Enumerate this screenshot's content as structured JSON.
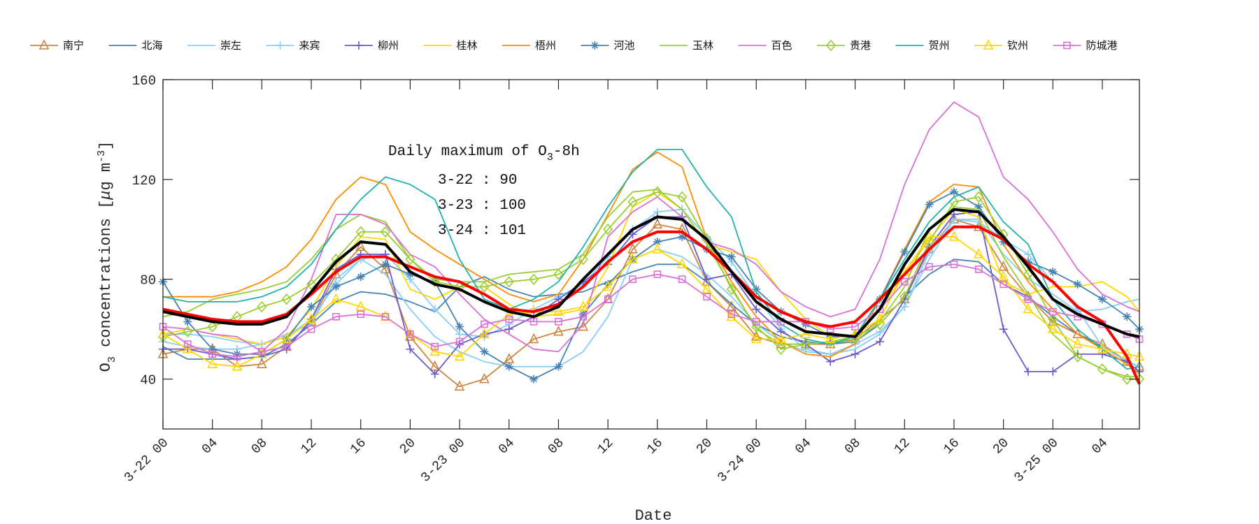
{
  "chart_data": {
    "type": "line",
    "xlabel": "Date",
    "ylabel": {
      "pre": "O",
      "sub": "3",
      "mid": " concentrations [",
      "mu": "μ",
      "unit": "g m",
      "sup": "-3",
      "post": "]"
    },
    "xlim": [
      0,
      79
    ],
    "ylim": [
      20,
      160
    ],
    "x_unit": "hours from 3-22 00",
    "x": [
      0,
      2,
      4,
      6,
      8,
      10,
      12,
      14,
      16,
      18,
      20,
      22,
      24,
      26,
      28,
      30,
      32,
      34,
      36,
      38,
      40,
      42,
      44,
      46,
      48,
      50,
      52,
      54,
      56,
      58,
      60,
      62,
      64,
      66,
      68,
      70,
      72,
      74,
      76,
      78,
      79
    ],
    "xticks": [
      {
        "value": 0,
        "label": "3-22 00"
      },
      {
        "value": 4,
        "label": "04"
      },
      {
        "value": 8,
        "label": "08"
      },
      {
        "value": 12,
        "label": "12"
      },
      {
        "value": 16,
        "label": "16"
      },
      {
        "value": 20,
        "label": "20"
      },
      {
        "value": 24,
        "label": "3-23 00"
      },
      {
        "value": 28,
        "label": "04"
      },
      {
        "value": 32,
        "label": "08"
      },
      {
        "value": 36,
        "label": "12"
      },
      {
        "value": 40,
        "label": "16"
      },
      {
        "value": 44,
        "label": "20"
      },
      {
        "value": 48,
        "label": "3-24 00"
      },
      {
        "value": 52,
        "label": "04"
      },
      {
        "value": 56,
        "label": "08"
      },
      {
        "value": 60,
        "label": "12"
      },
      {
        "value": 64,
        "label": "16"
      },
      {
        "value": 68,
        "label": "20"
      },
      {
        "value": 72,
        "label": "3-25 00"
      },
      {
        "value": 76,
        "label": "04"
      }
    ],
    "yticks": [
      {
        "value": 40,
        "label": "40"
      },
      {
        "value": 80,
        "label": "80"
      },
      {
        "value": 120,
        "label": "120"
      },
      {
        "value": 160,
        "label": "160"
      }
    ],
    "grid": false,
    "legend_position": "top",
    "annotation": {
      "title_pre": "Daily maximum of O",
      "title_sub": "3",
      "title_post": "-8h",
      "lines": [
        "3-22 : 90",
        "3-23 : 100",
        "3-24 : 101"
      ]
    },
    "series": [
      {
        "name": "南宁",
        "color": "#CD853F",
        "marker": "triangle",
        "values": [
          50,
          52,
          52,
          45,
          46,
          53,
          63,
          82,
          93,
          84,
          57,
          45,
          37,
          40,
          48,
          56,
          59,
          61,
          72,
          92,
          102,
          100,
          79,
          69,
          57,
          54,
          54,
          54,
          56,
          64,
          72,
          92,
          104,
          101,
          85,
          73,
          63,
          58,
          54,
          47,
          45
        ]
      },
      {
        "name": "北海",
        "color": "#4682B4",
        "marker": "none",
        "values": [
          53,
          48,
          48,
          48,
          49,
          54,
          62,
          71,
          75,
          74,
          71,
          67,
          77,
          81,
          76,
          73,
          74,
          75,
          79,
          83,
          86,
          86,
          79,
          70,
          62,
          57,
          55,
          54,
          55,
          62,
          73,
          82,
          88,
          87,
          78,
          73,
          65,
          58,
          53,
          47,
          45
        ]
      },
      {
        "name": "崇左",
        "color": "#87CEFA",
        "marker": "none",
        "values": [
          58,
          58,
          57,
          55,
          54,
          58,
          62,
          80,
          88,
          82,
          68,
          57,
          51,
          47,
          45,
          45,
          45,
          51,
          65,
          88,
          92,
          89,
          82,
          73,
          62,
          55,
          51,
          50,
          52,
          58,
          69,
          88,
          104,
          104,
          90,
          80,
          74,
          67,
          68,
          71,
          72
        ]
      },
      {
        "name": "来宾",
        "color": "#87CEFA",
        "marker": "plus",
        "values": [
          55,
          53,
          52,
          52,
          54,
          57,
          64,
          78,
          88,
          90,
          80,
          68,
          58,
          57,
          62,
          68,
          73,
          78,
          89,
          100,
          107,
          108,
          97,
          87,
          73,
          60,
          52,
          50,
          54,
          59,
          69,
          91,
          104,
          103,
          96,
          90,
          79,
          68,
          53,
          47,
          45
        ]
      },
      {
        "name": "柳州",
        "color": "#6A5ACD",
        "marker": "plus",
        "values": [
          52,
          52,
          50,
          48,
          49,
          52,
          64,
          84,
          90,
          90,
          52,
          42,
          54,
          58,
          60,
          65,
          72,
          79,
          86,
          98,
          105,
          105,
          80,
          82,
          68,
          59,
          54,
          47,
          50,
          55,
          72,
          93,
          106,
          107,
          60,
          43,
          43,
          50,
          50,
          47,
          43
        ]
      },
      {
        "name": "桂林",
        "color": "#FFD700",
        "marker": "none",
        "values": [
          58,
          60,
          58,
          56,
          54,
          57,
          68,
          85,
          97,
          96,
          76,
          72,
          77,
          77,
          70,
          65,
          66,
          68,
          85,
          109,
          115,
          108,
          94,
          91,
          88,
          75,
          64,
          57,
          57,
          68,
          82,
          96,
          108,
          105,
          79,
          74,
          77,
          77,
          79,
          73,
          67
        ]
      },
      {
        "name": "梧州",
        "color": "#FF8C00",
        "marker": "none",
        "values": [
          73,
          73,
          73,
          75,
          79,
          85,
          96,
          112,
          121,
          118,
          99,
          92,
          86,
          80,
          74,
          71,
          74,
          88,
          106,
          124,
          131,
          125,
          96,
          79,
          65,
          55,
          50,
          49,
          54,
          72,
          92,
          111,
          118,
          117,
          94,
          79,
          68,
          58,
          52,
          46,
          42
        ]
      },
      {
        "name": "河池",
        "color": "#4682B4",
        "marker": "star",
        "values": [
          79,
          63,
          52,
          50,
          50,
          56,
          69,
          77,
          81,
          86,
          82,
          79,
          61,
          51,
          45,
          40,
          45,
          66,
          78,
          88,
          95,
          97,
          92,
          89,
          76,
          67,
          62,
          57,
          57,
          72,
          91,
          110,
          115,
          109,
          95,
          87,
          83,
          78,
          72,
          65,
          60
        ]
      },
      {
        "name": "玉林",
        "color": "#9ACD32",
        "marker": "none",
        "values": [
          65,
          67,
          72,
          74,
          76,
          79,
          88,
          100,
          106,
          103,
          88,
          80,
          79,
          79,
          82,
          83,
          84,
          90,
          105,
          115,
          116,
          108,
          94,
          77,
          60,
          54,
          54,
          55,
          55,
          63,
          77,
          100,
          109,
          108,
          89,
          74,
          58,
          49,
          44,
          41,
          41
        ]
      },
      {
        "name": "百色",
        "color": "#DA70D6",
        "marker": "none",
        "values": [
          61,
          60,
          58,
          57,
          51,
          60,
          80,
          106,
          106,
          102,
          90,
          85,
          74,
          64,
          58,
          52,
          51,
          62,
          97,
          107,
          113,
          105,
          95,
          92,
          86,
          75,
          69,
          65,
          68,
          88,
          118,
          140,
          151,
          145,
          121,
          112,
          99,
          84,
          74,
          69,
          67
        ]
      },
      {
        "name": "贵港",
        "color": "#9ACD32",
        "marker": "diamond",
        "values": [
          57,
          59,
          61,
          65,
          69,
          72,
          78,
          88,
          99,
          99,
          88,
          79,
          77,
          77,
          79,
          80,
          82,
          88,
          100,
          111,
          115,
          113,
          96,
          76,
          61,
          52,
          54,
          55,
          57,
          62,
          73,
          95,
          111,
          113,
          98,
          82,
          64,
          49,
          44,
          40,
          40
        ]
      },
      {
        "name": "贺州",
        "color": "#20B2AA",
        "marker": "none",
        "values": [
          73,
          71,
          71,
          71,
          73,
          77,
          86,
          100,
          112,
          121,
          118,
          112,
          88,
          72,
          68,
          72,
          79,
          93,
          109,
          123,
          132,
          132,
          117,
          105,
          75,
          62,
          56,
          54,
          57,
          72,
          88,
          103,
          113,
          117,
          103,
          94,
          72,
          60,
          52,
          44,
          45
        ]
      },
      {
        "name": "钦州",
        "color": "#FFD700",
        "marker": "triangle",
        "values": [
          58,
          52,
          46,
          45,
          50,
          56,
          64,
          72,
          69,
          65,
          58,
          51,
          49,
          58,
          66,
          67,
          67,
          69,
          77,
          88,
          92,
          86,
          76,
          65,
          56,
          56,
          58,
          56,
          58,
          64,
          83,
          97,
          97,
          90,
          81,
          68,
          60,
          54,
          52,
          50,
          49
        ]
      },
      {
        "name": "防城港",
        "color": "#DA70D6",
        "marker": "square",
        "values": [
          61,
          54,
          50,
          49,
          51,
          53,
          60,
          65,
          66,
          65,
          58,
          53,
          55,
          62,
          64,
          63,
          63,
          65,
          72,
          80,
          82,
          80,
          73,
          66,
          63,
          63,
          63,
          60,
          61,
          68,
          79,
          85,
          86,
          84,
          78,
          72,
          67,
          65,
          62,
          58,
          56
        ]
      },
      {
        "color": "#FF0000",
        "marker": "none",
        "thick": true,
        "values": [
          68,
          66,
          64,
          63,
          63,
          66,
          74,
          83,
          89,
          89,
          85,
          81,
          79,
          74,
          68,
          67,
          70,
          77,
          87,
          95,
          99,
          99,
          92,
          83,
          73,
          67,
          63,
          61,
          63,
          72,
          82,
          92,
          101,
          101,
          96,
          86,
          79,
          69,
          63,
          49,
          38
        ]
      },
      {
        "color": "#000000",
        "marker": "none",
        "thick": true,
        "values": [
          67,
          65,
          63,
          62,
          62,
          65,
          75,
          87,
          95,
          94,
          83,
          78,
          76,
          71,
          67,
          65,
          69,
          80,
          90,
          100,
          105,
          104,
          96,
          83,
          71,
          64,
          59,
          58,
          57,
          68,
          86,
          100,
          108,
          107,
          97,
          85,
          72,
          66,
          62,
          58,
          57
        ]
      }
    ]
  }
}
